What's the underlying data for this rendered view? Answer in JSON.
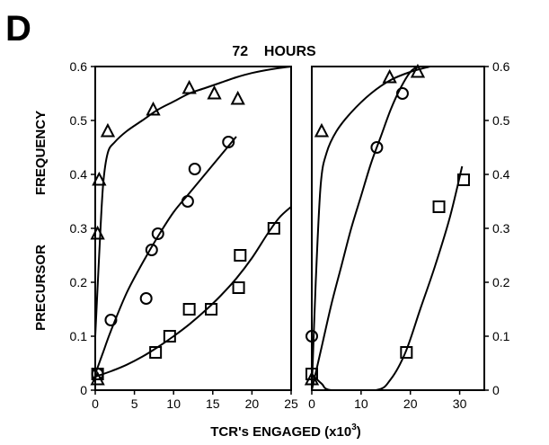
{
  "panel_label": "D",
  "chart_data": [
    {
      "type": "scatter",
      "title": "72    HOURS",
      "xlabel": "TCR's ENGAGED (x10",
      "xlabel_sup": "3",
      "xlabel_end": ")",
      "ylabel_left": [
        "PRECURSOR",
        "FREQUENCY"
      ],
      "xlim": [
        0,
        25
      ],
      "ylim": [
        0,
        0.6
      ],
      "x_ticks": [
        "0",
        "5",
        "10",
        "15",
        "20",
        "25"
      ],
      "x_tick_values": [
        0,
        5,
        10,
        15,
        20,
        25
      ],
      "y_ticks": [
        "0",
        "0.1",
        "0.2",
        "0.3",
        "0.4",
        "0.5",
        "0.6"
      ],
      "y_tick_values": [
        0,
        0.1,
        0.2,
        0.3,
        0.4,
        0.5,
        0.6
      ],
      "grid": false,
      "series": [
        {
          "marker": "triangle",
          "points": [
            [
              0.3,
              0.02
            ],
            [
              0.3,
              0.29
            ],
            [
              0.5,
              0.39
            ],
            [
              1.6,
              0.48
            ],
            [
              7.4,
              0.52
            ],
            [
              12.0,
              0.56
            ],
            [
              15.2,
              0.55
            ],
            [
              18.2,
              0.54
            ]
          ],
          "fit": [
            [
              0.0,
              0.1
            ],
            [
              0.5,
              0.25
            ],
            [
              1.0,
              0.38
            ],
            [
              1.6,
              0.44
            ],
            [
              2.5,
              0.46
            ],
            [
              4,
              0.48
            ],
            [
              6,
              0.5
            ],
            [
              8,
              0.52
            ],
            [
              10,
              0.535
            ],
            [
              12,
              0.55
            ],
            [
              14,
              0.56
            ],
            [
              16,
              0.57
            ],
            [
              18,
              0.58
            ],
            [
              20,
              0.588
            ],
            [
              22.5,
              0.595
            ],
            [
              25,
              0.6
            ]
          ]
        },
        {
          "marker": "circle",
          "points": [
            [
              0.3,
              0.03
            ],
            [
              2.0,
              0.13
            ],
            [
              6.5,
              0.17
            ],
            [
              7.2,
              0.26
            ],
            [
              8.0,
              0.29
            ],
            [
              11.8,
              0.35
            ],
            [
              12.7,
              0.41
            ],
            [
              17.0,
              0.46
            ]
          ],
          "fit": [
            [
              0.0,
              0.03
            ],
            [
              1,
              0.07
            ],
            [
              2,
              0.11
            ],
            [
              4,
              0.18
            ],
            [
              6,
              0.235
            ],
            [
              8,
              0.285
            ],
            [
              10,
              0.33
            ],
            [
              12,
              0.365
            ],
            [
              14,
              0.4
            ],
            [
              16,
              0.435
            ],
            [
              18,
              0.47
            ]
          ]
        },
        {
          "marker": "square",
          "points": [
            [
              0.3,
              0.03
            ],
            [
              7.7,
              0.07
            ],
            [
              9.5,
              0.1
            ],
            [
              12.0,
              0.15
            ],
            [
              14.8,
              0.15
            ],
            [
              18.3,
              0.19
            ],
            [
              18.5,
              0.25
            ],
            [
              22.8,
              0.3
            ]
          ],
          "fit": [
            [
              0.0,
              0.025
            ],
            [
              2,
              0.035
            ],
            [
              4,
              0.047
            ],
            [
              6,
              0.062
            ],
            [
              8,
              0.08
            ],
            [
              10,
              0.1
            ],
            [
              12,
              0.122
            ],
            [
              14,
              0.147
            ],
            [
              16,
              0.175
            ],
            [
              18,
              0.207
            ],
            [
              20,
              0.245
            ],
            [
              22,
              0.29
            ],
            [
              23.5,
              0.32
            ],
            [
              25,
              0.34
            ]
          ]
        }
      ]
    },
    {
      "type": "scatter",
      "xlim": [
        0,
        35
      ],
      "ylim": [
        0,
        0.6
      ],
      "x_ticks": [
        "0",
        "10",
        "20",
        "30"
      ],
      "x_tick_values": [
        0,
        10,
        20,
        30
      ],
      "y_ticks": [
        "0",
        "0.1",
        "0.2",
        "0.3",
        "0.4",
        "0.5",
        "0.6"
      ],
      "y_tick_values": [
        0,
        0.1,
        0.2,
        0.3,
        0.4,
        0.5,
        0.6
      ],
      "y_axis_side": "right",
      "grid": false,
      "series": [
        {
          "marker": "triangle",
          "points": [
            [
              0,
              0.02
            ],
            [
              2.0,
              0.48
            ],
            [
              15.8,
              0.58
            ],
            [
              21.5,
              0.59
            ]
          ],
          "fit": [
            [
              0,
              0.0
            ],
            [
              0.8,
              0.2
            ],
            [
              1.8,
              0.38
            ],
            [
              3,
              0.44
            ],
            [
              5,
              0.48
            ],
            [
              8,
              0.515
            ],
            [
              12,
              0.55
            ],
            [
              16,
              0.575
            ],
            [
              20,
              0.59
            ],
            [
              24,
              0.6
            ]
          ]
        },
        {
          "marker": "circle",
          "points": [
            [
              0,
              0.1
            ],
            [
              13.2,
              0.45
            ],
            [
              18.4,
              0.55
            ]
          ],
          "fit": [
            [
              0,
              0.0
            ],
            [
              2,
              0.08
            ],
            [
              4,
              0.16
            ],
            [
              6,
              0.23
            ],
            [
              8,
              0.3
            ],
            [
              10,
              0.36
            ],
            [
              12,
              0.42
            ],
            [
              14,
              0.47
            ],
            [
              16,
              0.52
            ],
            [
              18,
              0.56
            ],
            [
              20,
              0.59
            ],
            [
              21.5,
              0.6
            ]
          ]
        },
        {
          "marker": "square",
          "points": [
            [
              0,
              0.03
            ],
            [
              19.2,
              0.07
            ],
            [
              25.8,
              0.34
            ],
            [
              30.8,
              0.39
            ]
          ],
          "fit": [
            [
              0,
              0.03
            ],
            [
              2,
              0.012
            ],
            [
              4,
              0.0
            ],
            [
              13,
              0.0
            ],
            [
              16,
              0.02
            ],
            [
              19,
              0.07
            ],
            [
              22,
              0.15
            ],
            [
              25,
              0.23
            ],
            [
              28,
              0.32
            ],
            [
              30.5,
              0.415
            ]
          ]
        }
      ]
    }
  ]
}
